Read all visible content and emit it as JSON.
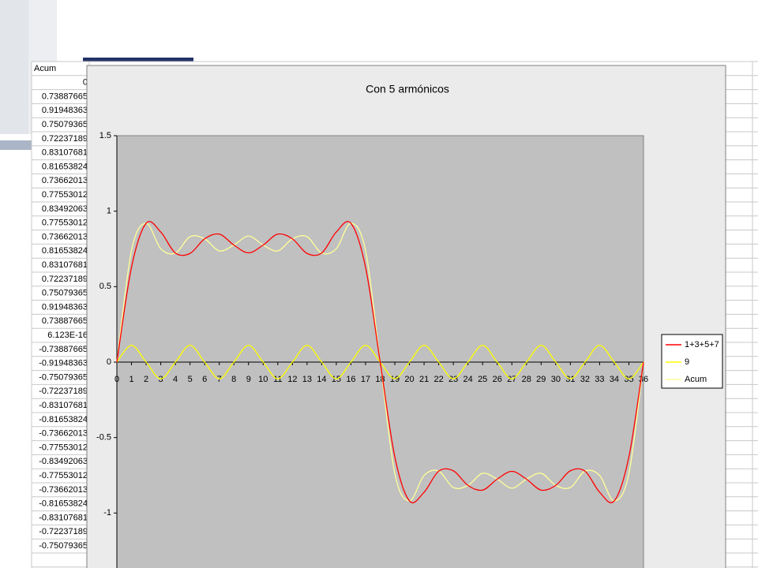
{
  "sheet": {
    "header": "Acum",
    "cells": [
      "0",
      "0.73887665",
      "0.91948363",
      "0.75079365",
      "0.72237189",
      "0.83107681",
      "0.81653824",
      "0.73662013",
      "0.77553012",
      "0.83492063",
      "0.77553012",
      "0.73662013",
      "0.81653824",
      "0.83107681",
      "0.72237189",
      "0.75079365",
      "0.91948363",
      "0.73887665",
      "6.123E-16",
      "-0.73887665",
      "-0.91948363",
      "-0.75079365",
      "-0.72237189",
      "-0.83107681",
      "-0.81653824",
      "-0.73662013",
      "-0.77553012",
      "-0.83492063",
      "-0.77553012",
      "-0.73662013",
      "-0.81653824",
      "-0.83107681",
      "-0.72237189",
      "-0.75079365"
    ]
  },
  "chart_data": {
    "type": "line",
    "title": "Con 5 armónicos",
    "categories": [
      0,
      1,
      2,
      3,
      4,
      5,
      6,
      7,
      8,
      9,
      10,
      11,
      12,
      13,
      14,
      15,
      16,
      17,
      18,
      19,
      20,
      21,
      22,
      23,
      24,
      25,
      26,
      27,
      28,
      29,
      30,
      31,
      32,
      33,
      34,
      35,
      36
    ],
    "series": [
      {
        "name": "1+3+5+7",
        "color": "#ff0000",
        "values": [
          0,
          0.62776554,
          0.91948363,
          0.86190476,
          0.72237189,
          0.7199657,
          0.81653824,
          0.84773124,
          0.77553012,
          0.72380952,
          0.77553012,
          0.84773124,
          0.81653824,
          0.7199657,
          0.72237189,
          0.86190476,
          0.91948363,
          0.62776554,
          0,
          -0.62776554,
          -0.91948363,
          -0.86190476,
          -0.72237189,
          -0.7199657,
          -0.81653824,
          -0.84773124,
          -0.77553012,
          -0.72380952,
          -0.77553012,
          -0.84773124,
          -0.81653824,
          -0.7199657,
          -0.72237189,
          -0.86190476,
          -0.91948363,
          -0.62776554,
          0
        ]
      },
      {
        "name": "9",
        "color": "#ffff00",
        "values": [
          0,
          0.11111111,
          0,
          -0.11111111,
          0,
          0.11111111,
          0,
          -0.11111111,
          0,
          0.11111111,
          0,
          -0.11111111,
          0,
          0.11111111,
          0,
          -0.11111111,
          0,
          0.11111111,
          0,
          -0.11111111,
          0,
          0.11111111,
          0,
          -0.11111111,
          0,
          0.11111111,
          0,
          -0.11111111,
          0,
          0.11111111,
          0,
          -0.11111111,
          0,
          0.11111111,
          0,
          -0.11111111,
          0
        ]
      },
      {
        "name": "Acum",
        "color": "#ffff99",
        "values": [
          0,
          0.73887665,
          0.91948363,
          0.75079365,
          0.72237189,
          0.83107681,
          0.81653824,
          0.73662013,
          0.77553012,
          0.83492063,
          0.77553012,
          0.73662013,
          0.81653824,
          0.83107681,
          0.72237189,
          0.75079365,
          0.91948363,
          0.73887665,
          6.123e-16,
          -0.73887665,
          -0.91948363,
          -0.75079365,
          -0.72237189,
          -0.83107681,
          -0.81653824,
          -0.73662013,
          -0.77553012,
          -0.83492063,
          -0.77553012,
          -0.73662013,
          -0.81653824,
          -0.83107681,
          -0.72237189,
          -0.75079365,
          -0.91948363,
          -0.73887665,
          0
        ]
      }
    ],
    "ylim": [
      -1.5,
      1.5
    ],
    "yticks": [
      -1,
      -0.5,
      0,
      0.5,
      1,
      1.5
    ],
    "grid": false,
    "legend": "right"
  }
}
